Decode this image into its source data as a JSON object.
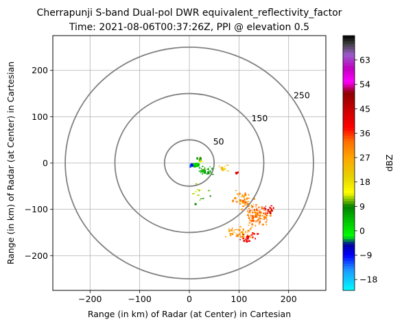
{
  "chart_data": {
    "type": "scatter",
    "title_line1": "Cherrapunji S-band Dual-pol DWR equivalent_reflectivity_factor",
    "title_line2": "Time: 2021-08-06T00:37:26Z, PPI @ elevation 0.5",
    "xlabel": "Range (in km) of Radar (at Center) in Cartesian",
    "ylabel": "Range (in km) of Radar (at Center) in Cartesian",
    "xlim": [
      -275,
      275
    ],
    "ylim": [
      -275,
      275
    ],
    "grid": true,
    "xticks": [
      -200,
      -100,
      0,
      100,
      200
    ],
    "yticks": [
      -200,
      -100,
      0,
      100,
      200
    ],
    "xtick_labels": [
      "−200",
      "−100",
      "0",
      "100",
      "200"
    ],
    "ytick_labels": [
      "−200",
      "−100",
      "0",
      "100",
      "200"
    ],
    "range_rings": [
      {
        "radius": 50,
        "label": "50",
        "label_x": 48,
        "label_y": 40
      },
      {
        "radius": 150,
        "label": "150",
        "label_x": 125,
        "label_y": 90
      },
      {
        "radius": 250,
        "label": "250",
        "label_x": 210,
        "label_y": 140
      }
    ],
    "colorbar": {
      "label": "dBZ",
      "vmin": -22,
      "vmax": 72,
      "ticks": [
        -18,
        -9,
        0,
        9,
        18,
        27,
        36,
        45,
        54,
        63
      ],
      "tick_labels": [
        "−18",
        "−9",
        "0",
        "9",
        "18",
        "27",
        "36",
        "45",
        "54",
        "63"
      ],
      "stops": [
        {
          "v": -22,
          "c": "#00ffff"
        },
        {
          "v": -14,
          "c": "#1e90ff"
        },
        {
          "v": -9,
          "c": "#0000ff"
        },
        {
          "v": -5,
          "c": "#0000a0"
        },
        {
          "v": -2,
          "c": "#00ff00"
        },
        {
          "v": 4,
          "c": "#00c000"
        },
        {
          "v": 9,
          "c": "#008000"
        },
        {
          "v": 14,
          "c": "#ffff00"
        },
        {
          "v": 20,
          "c": "#e6d200"
        },
        {
          "v": 27,
          "c": "#ffa500"
        },
        {
          "v": 33,
          "c": "#ff7000"
        },
        {
          "v": 38,
          "c": "#ff0000"
        },
        {
          "v": 45,
          "c": "#c80000"
        },
        {
          "v": 51,
          "c": "#8b0000"
        },
        {
          "v": 55,
          "c": "#ff00ff"
        },
        {
          "v": 60,
          "c": "#c000c0"
        },
        {
          "v": 65,
          "c": "#9c5ccc"
        },
        {
          "v": 69,
          "c": "#404040"
        },
        {
          "v": 72,
          "c": "#000000"
        }
      ]
    },
    "clusters": [
      {
        "cx": 3,
        "cy": -3,
        "sx": 4,
        "sy": 3,
        "n": 40,
        "dbz": -10
      },
      {
        "cx": 12,
        "cy": -2,
        "sx": 8,
        "sy": 5,
        "n": 60,
        "dbz": 3
      },
      {
        "cx": 30,
        "cy": -15,
        "sx": 25,
        "sy": 15,
        "n": 35,
        "dbz": 6
      },
      {
        "cx": 20,
        "cy": 10,
        "sx": 8,
        "sy": 8,
        "n": 12,
        "dbz": 10
      },
      {
        "cx": 70,
        "cy": -10,
        "sx": 15,
        "sy": 10,
        "n": 10,
        "dbz": 24
      },
      {
        "cx": 95,
        "cy": -20,
        "sx": 4,
        "sy": 3,
        "n": 6,
        "dbz": 40
      },
      {
        "cx": 110,
        "cy": -80,
        "sx": 35,
        "sy": 25,
        "n": 45,
        "dbz": 30
      },
      {
        "cx": 135,
        "cy": -115,
        "sx": 40,
        "sy": 30,
        "n": 90,
        "dbz": 32
      },
      {
        "cx": 100,
        "cy": -150,
        "sx": 35,
        "sy": 20,
        "n": 45,
        "dbz": 28
      },
      {
        "cx": 160,
        "cy": -100,
        "sx": 12,
        "sy": 15,
        "n": 20,
        "dbz": 42
      },
      {
        "cx": 120,
        "cy": -160,
        "sx": 25,
        "sy": 15,
        "n": 25,
        "dbz": 40
      },
      {
        "cx": 20,
        "cy": -60,
        "sx": 35,
        "sy": 40,
        "n": 15,
        "dbz": 12
      }
    ]
  }
}
